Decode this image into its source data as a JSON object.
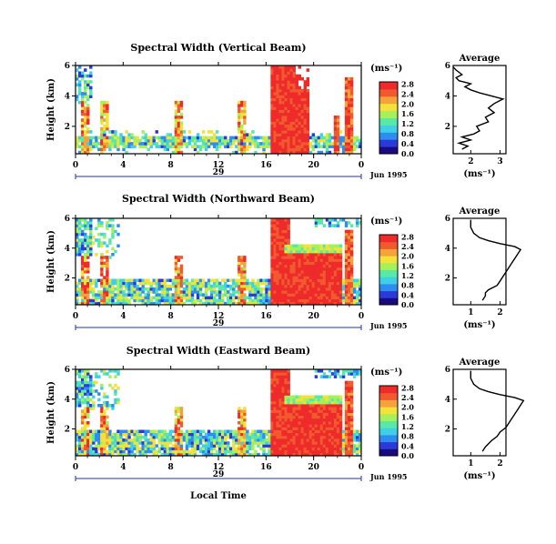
{
  "chart_data": [
    {
      "type": "heatmap",
      "title": "Spectral Width (Vertical Beam)",
      "xlabel": "",
      "ylabel": "Height (km)",
      "x_ticks": [
        "0",
        "4",
        "8",
        "12",
        "16",
        "20",
        "0"
      ],
      "x_range": [
        0,
        24
      ],
      "y_ticks": [
        "2",
        "4",
        "6"
      ],
      "y_range": [
        0.2,
        6
      ],
      "date_label": "29",
      "date_suffix": "Jun 1995",
      "colorbar": {
        "unit": "(ms⁻¹)",
        "ticks": [
          "0.0",
          "0.4",
          "0.8",
          "1.2",
          "1.6",
          "2.0",
          "2.4",
          "2.8"
        ]
      },
      "average": {
        "title": "Average",
        "xlabel": "(ms⁻¹)",
        "x_ticks": [
          "2",
          "3"
        ],
        "y_ticks": [
          "2",
          "4",
          "6"
        ],
        "profile": [
          [
            1.7,
            0.5
          ],
          [
            1.9,
            0.7
          ],
          [
            1.6,
            0.9
          ],
          [
            2.0,
            1.1
          ],
          [
            1.7,
            1.3
          ],
          [
            2.1,
            1.5
          ],
          [
            2.3,
            1.7
          ],
          [
            2.2,
            2.0
          ],
          [
            2.6,
            2.3
          ],
          [
            2.5,
            2.6
          ],
          [
            2.8,
            2.9
          ],
          [
            2.6,
            3.2
          ],
          [
            2.8,
            3.5
          ],
          [
            3.1,
            3.8
          ],
          [
            2.7,
            4.0
          ],
          [
            2.3,
            4.2
          ],
          [
            2.0,
            4.4
          ],
          [
            1.8,
            4.6
          ],
          [
            2.0,
            4.8
          ],
          [
            1.6,
            5.0
          ],
          [
            1.5,
            5.2
          ],
          [
            1.7,
            5.4
          ],
          [
            1.5,
            5.7
          ],
          [
            1.4,
            5.9
          ]
        ]
      }
    },
    {
      "type": "heatmap",
      "title": "Spectral Width (Northward Beam)",
      "xlabel": "",
      "ylabel": "Height (km)",
      "x_ticks": [
        "0",
        "4",
        "8",
        "12",
        "16",
        "20",
        "0"
      ],
      "x_range": [
        0,
        24
      ],
      "y_ticks": [
        "2",
        "4",
        "6"
      ],
      "y_range": [
        0.2,
        6
      ],
      "date_label": "29",
      "date_suffix": "Jun 1995",
      "colorbar": {
        "unit": "(ms⁻¹)",
        "ticks": [
          "0.0",
          "0.4",
          "0.8",
          "1.2",
          "1.6",
          "2.0",
          "2.4",
          "2.8"
        ]
      },
      "average": {
        "title": "Average",
        "xlabel": "(ms⁻¹)",
        "x_ticks": [
          "1",
          "2"
        ],
        "y_ticks": [
          "2",
          "4",
          "6"
        ],
        "profile": [
          [
            1.4,
            0.5
          ],
          [
            1.5,
            0.8
          ],
          [
            1.5,
            1.0
          ],
          [
            1.6,
            1.2
          ],
          [
            1.9,
            1.5
          ],
          [
            2.0,
            1.8
          ],
          [
            2.1,
            2.1
          ],
          [
            2.2,
            2.4
          ],
          [
            2.3,
            2.7
          ],
          [
            2.4,
            3.0
          ],
          [
            2.5,
            3.3
          ],
          [
            2.6,
            3.6
          ],
          [
            2.7,
            3.9
          ],
          [
            2.5,
            4.1
          ],
          [
            2.0,
            4.3
          ],
          [
            1.6,
            4.5
          ],
          [
            1.3,
            4.7
          ],
          [
            1.1,
            5.0
          ],
          [
            1.0,
            5.4
          ],
          [
            1.0,
            5.9
          ]
        ]
      }
    },
    {
      "type": "heatmap",
      "title": "Spectral Width (Eastward Beam)",
      "xlabel": "Local Time",
      "ylabel": "Height (km)",
      "x_ticks": [
        "0",
        "4",
        "8",
        "12",
        "16",
        "20",
        "0"
      ],
      "x_range": [
        0,
        24
      ],
      "y_ticks": [
        "2",
        "4",
        "6"
      ],
      "y_range": [
        0.2,
        6
      ],
      "date_label": "29",
      "date_suffix": "Jun 1995",
      "colorbar": {
        "unit": "(ms⁻¹)",
        "ticks": [
          "0.0",
          "0.4",
          "0.8",
          "1.2",
          "1.6",
          "2.0",
          "2.4",
          "2.8"
        ]
      },
      "average": {
        "title": "Average",
        "xlabel": "(ms⁻¹)",
        "x_ticks": [
          "1",
          "2"
        ],
        "y_ticks": [
          "2",
          "4",
          "6"
        ],
        "profile": [
          [
            1.4,
            0.5
          ],
          [
            1.5,
            0.8
          ],
          [
            1.6,
            1.0
          ],
          [
            1.7,
            1.2
          ],
          [
            1.9,
            1.5
          ],
          [
            2.0,
            1.8
          ],
          [
            2.2,
            2.1
          ],
          [
            2.3,
            2.4
          ],
          [
            2.4,
            2.7
          ],
          [
            2.5,
            3.0
          ],
          [
            2.6,
            3.3
          ],
          [
            2.7,
            3.6
          ],
          [
            2.8,
            3.9
          ],
          [
            2.5,
            4.1
          ],
          [
            2.0,
            4.3
          ],
          [
            1.6,
            4.5
          ],
          [
            1.3,
            4.7
          ],
          [
            1.1,
            5.0
          ],
          [
            1.0,
            5.4
          ],
          [
            1.0,
            5.9
          ]
        ]
      }
    }
  ],
  "colors": {
    "colormap": [
      "#1a0a80",
      "#2a3ad8",
      "#2f8cf0",
      "#3fd0e8",
      "#58e8a8",
      "#a6f05a",
      "#f2e23a",
      "#f4a23a",
      "#f05a2e",
      "#ee2a2a"
    ]
  }
}
